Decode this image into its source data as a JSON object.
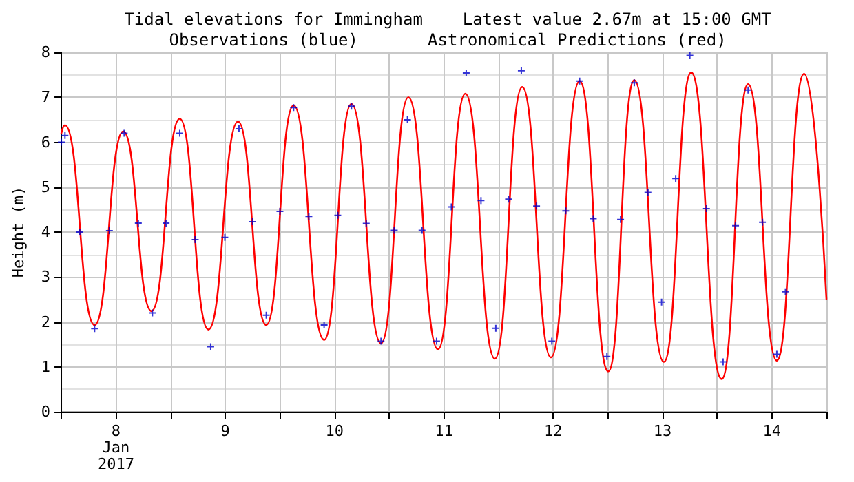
{
  "chart_data": {
    "type": "line",
    "title": "Tidal elevations for Immingham    Latest value 2.67m at 15:00 GMT",
    "subtitle": "Observations (blue)       Astronomical Predictions (red)",
    "ylabel": "Height (m)",
    "xlim": [
      "2017-01-08T00:00",
      "2017-01-15T00:00"
    ],
    "xticks": [
      {
        "value": "2017-01-08T00:00",
        "label": null
      },
      {
        "value": "2017-01-08T12:00",
        "label": "8\nJan\n2017"
      },
      {
        "value": "2017-01-09T00:00",
        "label": null
      },
      {
        "value": "2017-01-09T12:00",
        "label": "9"
      },
      {
        "value": "2017-01-10T00:00",
        "label": null
      },
      {
        "value": "2017-01-10T12:00",
        "label": "10"
      },
      {
        "value": "2017-01-11T00:00",
        "label": null
      },
      {
        "value": "2017-01-11T12:00",
        "label": "11"
      },
      {
        "value": "2017-01-12T00:00",
        "label": null
      },
      {
        "value": "2017-01-12T12:00",
        "label": "12"
      },
      {
        "value": "2017-01-13T00:00",
        "label": null
      },
      {
        "value": "2017-01-13T12:00",
        "label": "13"
      },
      {
        "value": "2017-01-14T00:00",
        "label": null
      },
      {
        "value": "2017-01-14T12:00",
        "label": "14"
      },
      {
        "value": "2017-01-15T00:00",
        "label": null
      }
    ],
    "ylim": [
      0,
      8
    ],
    "yticks": [
      0,
      1,
      2,
      3,
      4,
      5,
      6,
      7,
      8
    ],
    "grid": true,
    "series": [
      {
        "color": "#ff0000",
        "line_style": "solid",
        "marker": "none",
        "x": [
          "2017-01-08T00:00",
          "2017-01-08T00:48",
          "2017-01-08T07:18",
          "2017-01-08T13:36",
          "2017-01-08T19:48",
          "2017-01-09T02:00",
          "2017-01-09T08:18",
          "2017-01-09T14:48",
          "2017-01-09T21:00",
          "2017-01-10T03:00",
          "2017-01-10T09:42",
          "2017-01-10T15:42",
          "2017-01-10T22:12",
          "2017-01-11T04:12",
          "2017-01-11T10:42",
          "2017-01-11T16:42",
          "2017-01-11T23:12",
          "2017-01-12T05:12",
          "2017-01-12T11:30",
          "2017-01-12T17:48",
          "2017-01-13T00:06",
          "2017-01-13T05:48",
          "2017-01-13T12:18",
          "2017-01-13T18:18",
          "2017-01-14T01:00",
          "2017-01-14T06:48",
          "2017-01-14T13:06",
          "2017-01-14T19:06",
          "2017-01-15T00:00"
        ],
        "values": [
          6.2,
          6.38,
          1.93,
          6.24,
          2.24,
          6.52,
          1.83,
          6.46,
          1.93,
          6.82,
          1.6,
          6.85,
          1.52,
          7.0,
          1.39,
          7.08,
          1.18,
          7.23,
          1.21,
          7.36,
          0.9,
          7.38,
          1.11,
          7.55,
          0.73,
          7.29,
          1.14,
          7.52,
          2.51
        ]
      },
      {
        "type": "scatter",
        "color": "#0000cc",
        "marker": "cross",
        "x": [
          "2017-01-08T00:00",
          "2017-01-08T00:48",
          "2017-01-08T04:03",
          "2017-01-08T07:18",
          "2017-01-08T10:33",
          "2017-01-08T13:48",
          "2017-01-08T16:54",
          "2017-01-08T20:00",
          "2017-01-08T23:00",
          "2017-01-09T02:00",
          "2017-01-09T05:24",
          "2017-01-09T08:48",
          "2017-01-09T11:54",
          "2017-01-09T15:00",
          "2017-01-09T18:00",
          "2017-01-09T21:00",
          "2017-01-10T00:00",
          "2017-01-10T03:00",
          "2017-01-10T06:21",
          "2017-01-10T09:42",
          "2017-01-10T12:42",
          "2017-01-10T15:42",
          "2017-01-10T18:57",
          "2017-01-10T22:12",
          "2017-01-11T01:06",
          "2017-01-11T04:00",
          "2017-01-11T07:12",
          "2017-01-11T10:24",
          "2017-01-11T13:39",
          "2017-01-11T16:54",
          "2017-01-11T20:09",
          "2017-01-11T23:24",
          "2017-01-12T02:12",
          "2017-01-12T05:00",
          "2017-01-12T08:21",
          "2017-01-12T11:42",
          "2017-01-12T14:45",
          "2017-01-12T17:48",
          "2017-01-12T20:48",
          "2017-01-12T23:48",
          "2017-01-13T02:48",
          "2017-01-13T05:48",
          "2017-01-13T08:48",
          "2017-01-13T11:48",
          "2017-01-13T14:54",
          "2017-01-13T18:00",
          "2017-01-13T21:39",
          "2017-01-14T01:18",
          "2017-01-14T04:03",
          "2017-01-14T06:48",
          "2017-01-14T09:57",
          "2017-01-14T13:06",
          "2017-01-14T15:00"
        ],
        "values": [
          6.0,
          6.15,
          4.0,
          1.85,
          4.03,
          6.2,
          4.2,
          2.2,
          4.2,
          6.2,
          3.83,
          1.45,
          3.88,
          6.3,
          4.23,
          2.15,
          4.46,
          6.77,
          4.35,
          1.93,
          4.37,
          6.8,
          4.19,
          1.57,
          4.04,
          6.5,
          4.04,
          1.57,
          4.56,
          7.54,
          4.7,
          1.86,
          4.73,
          7.59,
          4.58,
          1.57,
          4.47,
          7.36,
          4.3,
          1.23,
          4.28,
          7.32,
          4.88,
          2.44,
          5.19,
          7.93,
          4.52,
          1.11,
          4.14,
          7.16,
          4.22,
          1.28,
          2.67
        ]
      }
    ]
  }
}
